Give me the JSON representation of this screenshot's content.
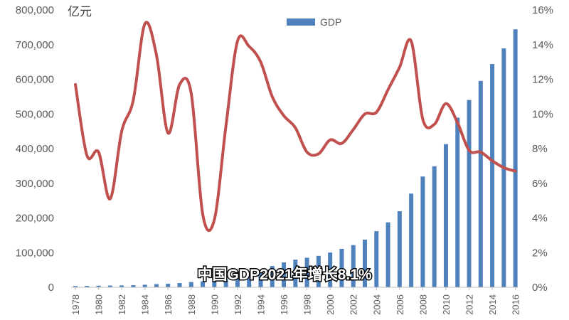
{
  "chart_data": {
    "type": "bar",
    "title": "",
    "unit_label": "亿元",
    "caption": "中国GDP2021年增长8.1%",
    "legend_position": "top-center",
    "grid": false,
    "y_left": {
      "min": 0,
      "max": 800000,
      "step": 100000,
      "tick_labels": [
        "0",
        "100,000",
        "200,000",
        "300,000",
        "400,000",
        "500,000",
        "600,000",
        "700,000",
        "800,000"
      ]
    },
    "y_right": {
      "min": 0,
      "max": 16,
      "step": 2,
      "tick_labels": [
        "0%",
        "2%",
        "4%",
        "6%",
        "8%",
        "10%",
        "12%",
        "14%",
        "16%"
      ]
    },
    "x_tick_labels": [
      "1978",
      "1980",
      "1982",
      "1984",
      "1986",
      "1988",
      "1990",
      "1992",
      "1994",
      "1996",
      "1998",
      "2000",
      "2002",
      "2004",
      "2006",
      "2008",
      "2010",
      "2012",
      "2014",
      "2016"
    ],
    "series": [
      {
        "name": "GDP",
        "type": "bar",
        "axis": "left",
        "color": "#4f81bd",
        "x": [
          1978,
          1979,
          1980,
          1981,
          1982,
          1983,
          1984,
          1985,
          1986,
          1987,
          1988,
          1989,
          1990,
          1991,
          1992,
          1993,
          1994,
          1995,
          1996,
          1997,
          1998,
          1999,
          2000,
          2001,
          2002,
          2003,
          2004,
          2005,
          2006,
          2007,
          2008,
          2009,
          2010,
          2011,
          2012,
          2013,
          2014,
          2015,
          2016
        ],
        "values": [
          3679,
          4101,
          4588,
          4936,
          5373,
          6021,
          7279,
          9099,
          10376,
          12175,
          15180,
          17180,
          18873,
          22006,
          27195,
          35673,
          48638,
          61340,
          71814,
          79715,
          85196,
          90564,
          100280,
          110863,
          121717,
          137422,
          161840,
          187319,
          219439,
          270232,
          319516,
          349081,
          413030,
          489301,
          540367,
          595244,
          643974,
          689052,
          744127
        ]
      },
      {
        "name": "",
        "type": "line",
        "axis": "right",
        "color": "#c0504d",
        "x": [
          1978,
          1979,
          1980,
          1981,
          1982,
          1983,
          1984,
          1985,
          1986,
          1987,
          1988,
          1989,
          1990,
          1991,
          1992,
          1993,
          1994,
          1995,
          1996,
          1997,
          1998,
          1999,
          2000,
          2001,
          2002,
          2003,
          2004,
          2005,
          2006,
          2007,
          2008,
          2009,
          2010,
          2011,
          2012,
          2013,
          2014,
          2015,
          2016
        ],
        "values": [
          11.7,
          7.6,
          7.8,
          5.1,
          9.0,
          10.8,
          15.2,
          13.4,
          8.9,
          11.7,
          11.2,
          4.2,
          3.9,
          9.3,
          14.2,
          13.9,
          13.0,
          11.0,
          9.9,
          9.2,
          7.8,
          7.7,
          8.5,
          8.3,
          9.1,
          10.0,
          10.1,
          11.4,
          12.7,
          14.2,
          9.7,
          9.4,
          10.6,
          9.5,
          7.9,
          7.8,
          7.3,
          6.9,
          6.7
        ]
      }
    ]
  }
}
